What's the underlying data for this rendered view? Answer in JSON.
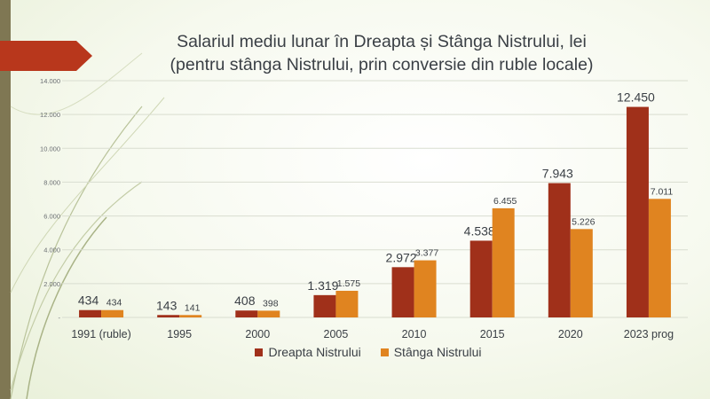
{
  "slide": {
    "title_line1": "Salariul mediu lunar în Dreapta și Stânga Nistrului, lei",
    "title_line2": "(pentru stânga Nistrului, prin conversie din ruble locale)"
  },
  "colors": {
    "dreapta": "#a0301a",
    "stanga": "#e08420",
    "accent_arrow": "#b8371c",
    "side_band": "#7f7753",
    "text": "#3a3f45"
  },
  "chart_data": {
    "type": "bar",
    "title": "",
    "xlabel": "",
    "ylabel": "",
    "ylim": [
      0,
      14000
    ],
    "yticks": [
      "14.000",
      "12.000",
      "10.000",
      "8.000",
      "6.000",
      "4.000",
      "2.000",
      "-"
    ],
    "grid": true,
    "legend_position": "bottom",
    "categories": [
      "1991 (ruble)",
      "1995",
      "2000",
      "2005",
      "2010",
      "2015",
      "2020",
      "2023 prog"
    ],
    "series": [
      {
        "name": "Dreapta Nistrului",
        "values": [
          434,
          143,
          408,
          1319,
          2972,
          4538,
          7943,
          12450
        ],
        "labels": [
          "434",
          "143",
          "408",
          "1.319",
          "2.972",
          "4.538",
          "7.943",
          "12.450"
        ]
      },
      {
        "name": "Stânga Nistrului",
        "values": [
          434,
          141,
          398,
          1575,
          3377,
          6455,
          5226,
          7011
        ],
        "labels": [
          "434",
          "141",
          "398",
          "1.575",
          "3.377",
          "6.455",
          "5.226",
          "7.011"
        ]
      }
    ]
  }
}
